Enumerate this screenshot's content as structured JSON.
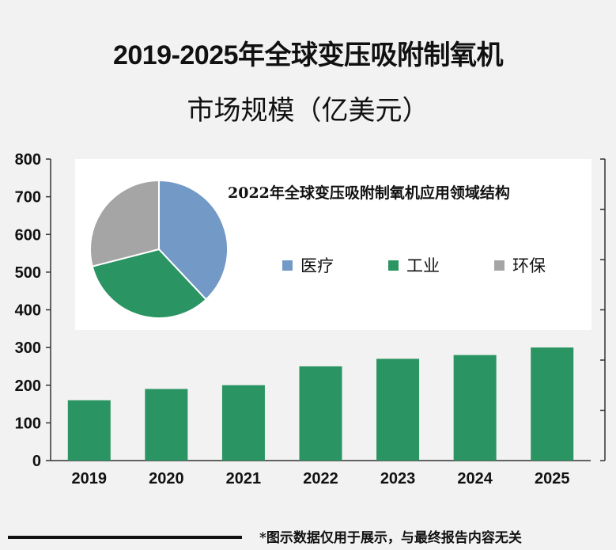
{
  "title_line1": "2019-2025年全球变压吸附制氧机",
  "title_line2": "市场规模（亿美元）",
  "footer_note": "*图示数据仅用于展示，与最终报告内容无关",
  "chart_data": [
    {
      "type": "bar",
      "title": "2019-2025年全球变压吸附制氧机市场规模（亿美元）",
      "categories": [
        "2019",
        "2020",
        "2021",
        "2022",
        "2023",
        "2024",
        "2025"
      ],
      "values": [
        160,
        190,
        200,
        250,
        270,
        280,
        300
      ],
      "ylim": [
        0,
        800
      ],
      "yticks": [
        "0",
        "100",
        "200",
        "300",
        "400",
        "500",
        "600",
        "700",
        "800"
      ],
      "color": "#2a9462"
    },
    {
      "type": "pie",
      "title": "2022年全球变压吸附制氧机应用领域结构",
      "labels": [
        "医疗",
        "工业",
        "环保"
      ],
      "values": [
        38,
        33,
        29
      ],
      "colors": [
        "#7399c6",
        "#2a9462",
        "#a5a5a5"
      ]
    }
  ]
}
